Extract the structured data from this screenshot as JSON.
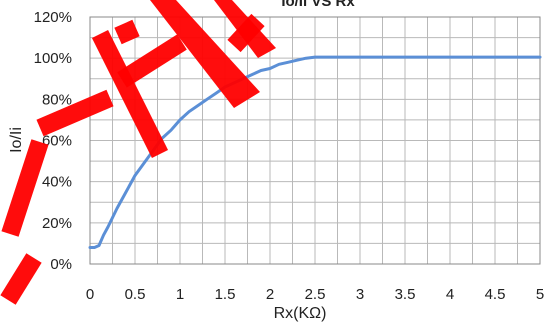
{
  "chart_data": {
    "type": "line",
    "title": "Io/Ii VS Rx",
    "xlabel": "Rx(KΩ)",
    "ylabel": "Io/Ii",
    "xlim": [
      0,
      5
    ],
    "ylim": [
      0,
      120
    ],
    "x_ticks": [
      0,
      0.5,
      1,
      1.5,
      2,
      2.5,
      3,
      3.5,
      4,
      4.5,
      5
    ],
    "x_tick_labels": [
      "0",
      "0.5",
      "1",
      "1.5",
      "2",
      "2.5",
      "3",
      "3.5",
      "4",
      "4.5",
      "5"
    ],
    "y_ticks": [
      0,
      20,
      40,
      60,
      80,
      100,
      120
    ],
    "y_tick_labels": [
      "0%",
      "20%",
      "40%",
      "60%",
      "80%",
      "100%",
      "120%"
    ],
    "grid": true,
    "legend": "none",
    "series": [
      {
        "color": "#5b8fd6",
        "x": [
          0,
          0.05,
          0.1,
          0.15,
          0.2,
          0.3,
          0.4,
          0.5,
          0.6,
          0.7,
          0.8,
          0.9,
          1.0,
          1.1,
          1.2,
          1.3,
          1.4,
          1.5,
          1.6,
          1.7,
          1.8,
          1.9,
          2.0,
          2.1,
          2.2,
          2.3,
          2.4,
          2.5,
          2.6,
          2.7,
          2.8,
          3.0,
          3.5,
          4.0,
          4.5,
          5.0
        ],
        "y": [
          8,
          8,
          9,
          14,
          18,
          27,
          35,
          43,
          49,
          55,
          61,
          65,
          70,
          74,
          77,
          80,
          83,
          86,
          88,
          90,
          92,
          94,
          95,
          97,
          98,
          99,
          100,
          100.5,
          100.5,
          100.5,
          100.5,
          100.5,
          100.5,
          100.5,
          100.5,
          100.5
        ]
      }
    ]
  },
  "watermark": {
    "text": "ACTIVE",
    "color": "#ff0000"
  }
}
